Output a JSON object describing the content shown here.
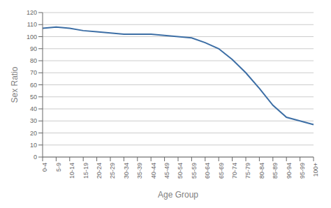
{
  "chart_data": {
    "type": "line",
    "categories": [
      "0-4",
      "5-9",
      "10-14",
      "15-19",
      "20-24",
      "25-29",
      "30-34",
      "35-39",
      "40-44",
      "45-49",
      "50-54",
      "55-59",
      "60-64",
      "65-69",
      "70-74",
      "75-79",
      "80-84",
      "85-89",
      "90-94",
      "95-99",
      "100+"
    ],
    "values": [
      107,
      108,
      107,
      105,
      104,
      103,
      102,
      102,
      102,
      101,
      100,
      99,
      95,
      90,
      81,
      70,
      57,
      43,
      33,
      30,
      27
    ],
    "color": "#3c6ea5",
    "xlabel": "Age Group",
    "ylabel": "Sex Ratio",
    "ylim": [
      0,
      120
    ],
    "yticks": [
      0,
      10,
      20,
      30,
      40,
      50,
      60,
      70,
      80,
      90,
      100,
      110,
      120
    ],
    "grid": true
  }
}
